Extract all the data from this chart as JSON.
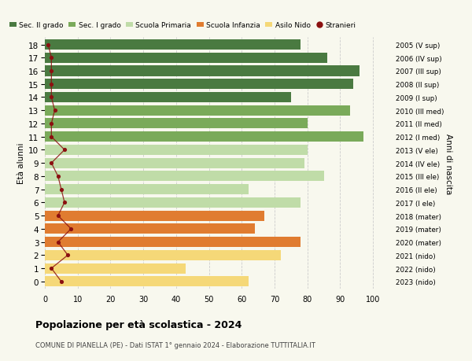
{
  "ages": [
    18,
    17,
    16,
    15,
    14,
    13,
    12,
    11,
    10,
    9,
    8,
    7,
    6,
    5,
    4,
    3,
    2,
    1,
    0
  ],
  "labels_right": [
    "2005 (V sup)",
    "2006 (IV sup)",
    "2007 (III sup)",
    "2008 (II sup)",
    "2009 (I sup)",
    "2010 (III med)",
    "2011 (II med)",
    "2012 (I med)",
    "2013 (V ele)",
    "2014 (IV ele)",
    "2015 (III ele)",
    "2016 (II ele)",
    "2017 (I ele)",
    "2018 (mater)",
    "2019 (mater)",
    "2020 (mater)",
    "2021 (nido)",
    "2022 (nido)",
    "2023 (nido)"
  ],
  "bar_values": [
    78,
    86,
    96,
    94,
    75,
    93,
    80,
    97,
    80,
    79,
    85,
    62,
    78,
    67,
    64,
    78,
    72,
    43,
    62
  ],
  "bar_colors": [
    "#4a7a41",
    "#4a7a41",
    "#4a7a41",
    "#4a7a41",
    "#4a7a41",
    "#7aaa5a",
    "#7aaa5a",
    "#7aaa5a",
    "#c0dca8",
    "#c0dca8",
    "#c0dca8",
    "#c0dca8",
    "#c0dca8",
    "#e07c30",
    "#e07c30",
    "#e07c30",
    "#f5d878",
    "#f5d878",
    "#f5d878"
  ],
  "stranieri_values": [
    1,
    2,
    2,
    2,
    2,
    3,
    2,
    2,
    6,
    2,
    4,
    5,
    6,
    4,
    8,
    4,
    7,
    2,
    5
  ],
  "stranieri_color": "#8b1010",
  "xlim": [
    0,
    105
  ],
  "xticks": [
    0,
    10,
    20,
    30,
    40,
    50,
    60,
    70,
    80,
    90,
    100
  ],
  "title": "Popolazione per età scolastica - 2024",
  "subtitle": "COMUNE DI PIANELLA (PE) - Dati ISTAT 1° gennaio 2024 - Elaborazione TUTTITALIA.IT",
  "ylabel": "Età alunni",
  "ylabel_right": "Anni di nascita",
  "legend_items": [
    {
      "label": "Sec. II grado",
      "color": "#4a7a41"
    },
    {
      "label": "Sec. I grado",
      "color": "#7aaa5a"
    },
    {
      "label": "Scuola Primaria",
      "color": "#c0dca8"
    },
    {
      "label": "Scuola Infanzia",
      "color": "#e07c30"
    },
    {
      "label": "Asilo Nido",
      "color": "#f5d878"
    },
    {
      "label": "Stranieri",
      "color": "#8b1010"
    }
  ],
  "bg_color": "#f8f8ee",
  "bar_height": 0.78,
  "grid_color": "#cccccc"
}
